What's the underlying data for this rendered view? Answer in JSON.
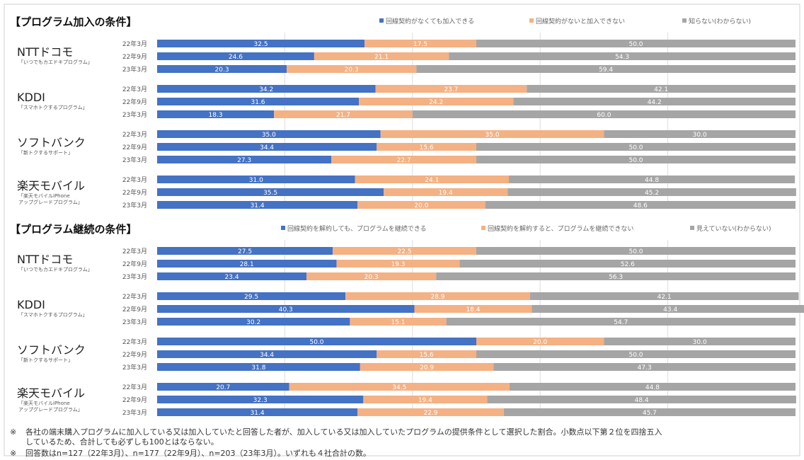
{
  "chart_data": [
    {
      "type": "bar",
      "stacked": true,
      "orientation": "horizontal",
      "title": "【プログラム加入の条件】",
      "legend": [
        {
          "name": "回線契約がなくても加入できる",
          "color": "#4472c4"
        },
        {
          "name": "回線契約がないと加入できない",
          "color": "#f4b183"
        },
        {
          "name": "知らない(わからない)",
          "color": "#a5a5a5"
        }
      ],
      "groups": [
        {
          "name": "NTTドコモ",
          "program": [
            "「いつでもカエドキプログラム」"
          ],
          "rows": [
            {
              "period": "22年3月",
              "values": [
                32.5,
                17.5,
                50.0
              ]
            },
            {
              "period": "22年9月",
              "values": [
                24.6,
                21.1,
                54.3
              ]
            },
            {
              "period": "23年3月",
              "values": [
                20.3,
                20.3,
                59.4
              ]
            }
          ]
        },
        {
          "name": "KDDI",
          "program": [
            "「スマホトクするプログラム」"
          ],
          "rows": [
            {
              "period": "22年3月",
              "values": [
                34.2,
                23.7,
                42.1
              ]
            },
            {
              "period": "22年9月",
              "values": [
                31.6,
                24.2,
                44.2
              ]
            },
            {
              "period": "23年3月",
              "values": [
                18.3,
                21.7,
                60.0
              ]
            }
          ]
        },
        {
          "name": "ソフトバンク",
          "program": [
            "「新トクするサポート」"
          ],
          "rows": [
            {
              "period": "22年3月",
              "values": [
                35.0,
                35.0,
                30.0
              ]
            },
            {
              "period": "22年9月",
              "values": [
                34.4,
                15.6,
                50.0
              ]
            },
            {
              "period": "23年3月",
              "values": [
                27.3,
                22.7,
                50.0
              ]
            }
          ]
        },
        {
          "name": "楽天モバイル",
          "program": [
            "「楽天モバイルiPhone",
            "アップグレードプログラム」"
          ],
          "rows": [
            {
              "period": "22年3月",
              "values": [
                31.0,
                24.1,
                44.8
              ]
            },
            {
              "period": "22年9月",
              "values": [
                35.5,
                19.4,
                45.2
              ]
            },
            {
              "period": "23年3月",
              "values": [
                31.4,
                20.0,
                48.6
              ]
            }
          ]
        }
      ],
      "xlim": [
        0,
        100
      ],
      "grid": true
    },
    {
      "type": "bar",
      "stacked": true,
      "orientation": "horizontal",
      "title": "【プログラム継続の条件】",
      "legend": [
        {
          "name": "回線契約を解約しても、プログラムを継続できる",
          "color": "#4472c4"
        },
        {
          "name": "回線契約を解約すると、プログラムを継続できない",
          "color": "#f4b183"
        },
        {
          "name": "見えていない(わからない)",
          "color": "#a5a5a5"
        }
      ],
      "groups": [
        {
          "name": "NTTドコモ",
          "program": [
            "「いつでもカエドキプログラム」"
          ],
          "rows": [
            {
              "period": "22年3月",
              "values": [
                27.5,
                22.5,
                50.0
              ]
            },
            {
              "period": "22年9月",
              "values": [
                28.1,
                19.3,
                52.6
              ]
            },
            {
              "period": "23年3月",
              "values": [
                23.4,
                20.3,
                56.3
              ]
            }
          ]
        },
        {
          "name": "KDDI",
          "program": [
            "「スマホトクするプログラム」"
          ],
          "rows": [
            {
              "period": "22年3月",
              "values": [
                29.5,
                28.9,
                42.1
              ]
            },
            {
              "period": "22年9月",
              "values": [
                40.3,
                18.4,
                43.4
              ]
            },
            {
              "period": "23年3月",
              "values": [
                30.2,
                15.1,
                54.7
              ]
            }
          ]
        },
        {
          "name": "ソフトバンク",
          "program": [
            "「新トクするサポート」"
          ],
          "rows": [
            {
              "period": "22年3月",
              "values": [
                50.0,
                20.0,
                30.0
              ]
            },
            {
              "period": "22年9月",
              "values": [
                34.4,
                15.6,
                50.0
              ]
            },
            {
              "period": "23年3月",
              "values": [
                31.8,
                20.9,
                47.3
              ]
            }
          ]
        },
        {
          "name": "楽天モバイル",
          "program": [
            "「楽天モバイルiPhone",
            "アップグレードプログラム」"
          ],
          "rows": [
            {
              "period": "22年3月",
              "values": [
                20.7,
                34.5,
                44.8
              ]
            },
            {
              "period": "22年9月",
              "values": [
                32.3,
                19.4,
                48.4
              ]
            },
            {
              "period": "23年3月",
              "values": [
                31.4,
                22.9,
                45.7
              ]
            }
          ]
        }
      ],
      "xlim": [
        0,
        100
      ],
      "grid": true
    }
  ],
  "footnotes": {
    "mark": "※",
    "note1_line1": "各社の端末購入プログラムに加入している又は加入していたと回答した者が、加入している又は加入していたプログラムの提供条件として選択した割合。小数点以下第２位を四捨五入",
    "note1_line2": "しているため、合計しても必ずしも100とはならない。",
    "note2": "回答数はn=127（22年3月）、n=177（22年9月）、n=203（23年3月）。いずれも４社合計の数。"
  }
}
